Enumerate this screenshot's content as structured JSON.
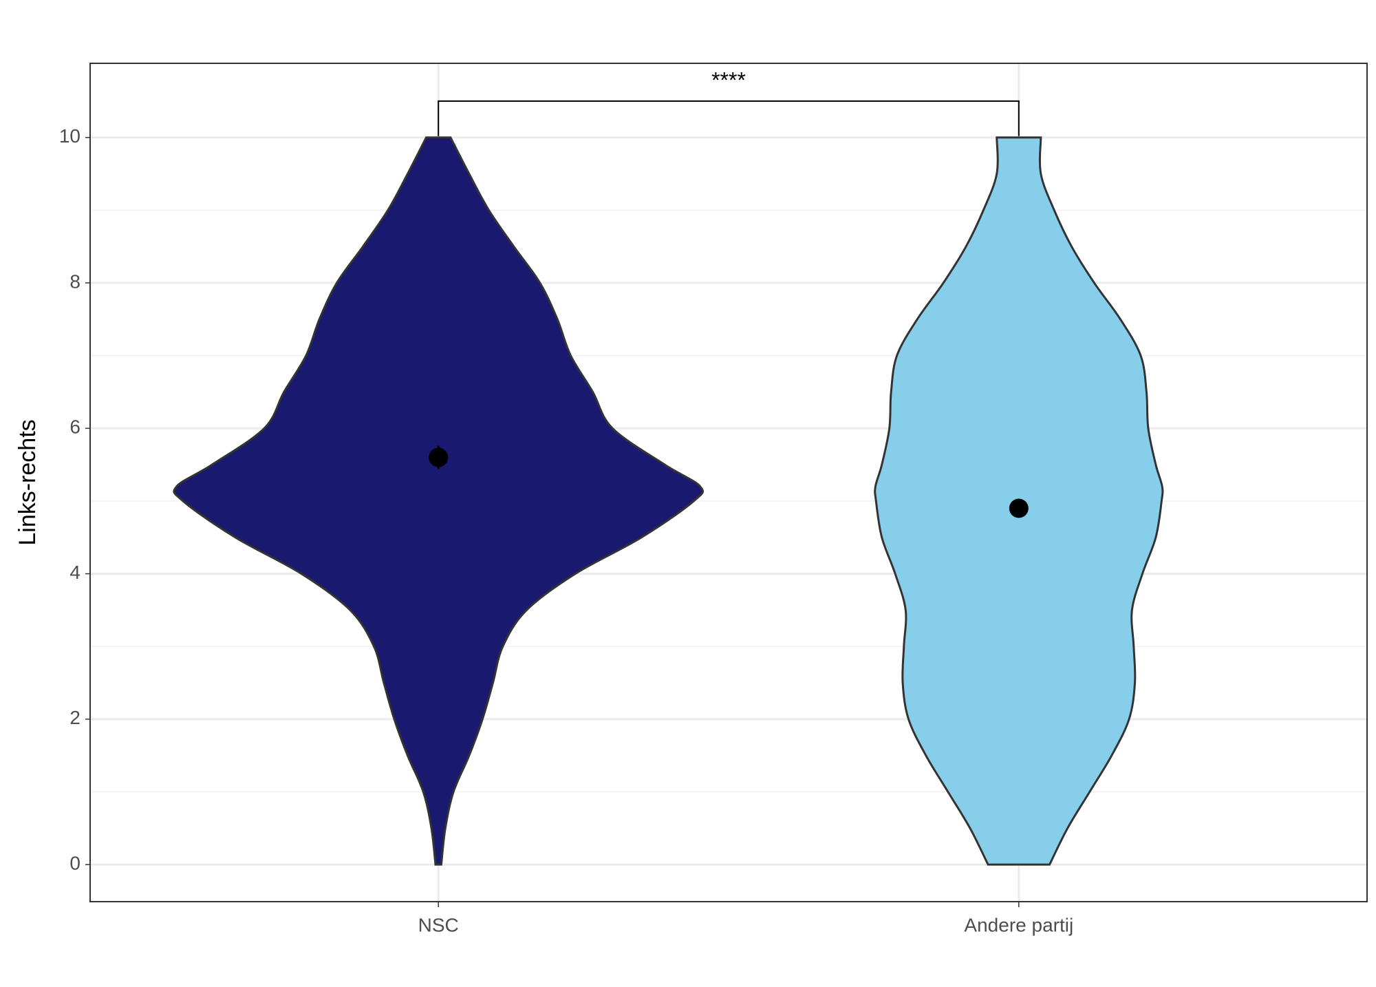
{
  "chart_data": {
    "type": "violin",
    "ylabel": "Links-rechts",
    "categories": [
      "NSC",
      "Andere partij"
    ],
    "ylim": [
      -0.51,
      11.02
    ],
    "yticks": [
      0,
      2,
      4,
      6,
      8,
      10
    ],
    "yminor": [
      1,
      3,
      5,
      7,
      9
    ],
    "grid": true,
    "density_y": [
      0,
      0.5,
      1,
      1.5,
      2,
      2.5,
      3,
      3.5,
      4,
      4.5,
      5,
      5.2,
      5.5,
      6,
      6.5,
      7,
      7.5,
      8,
      8.5,
      9,
      9.5,
      10
    ],
    "series": [
      {
        "name": "NSC",
        "color": "#191970",
        "half_widths": [
          0.005,
          0.012,
          0.026,
          0.053,
          0.076,
          0.094,
          0.111,
          0.152,
          0.236,
          0.35,
          0.44,
          0.451,
          0.39,
          0.3,
          0.266,
          0.228,
          0.205,
          0.175,
          0.13,
          0.087,
          0.053,
          0.021
        ],
        "mean": 5.6,
        "error": 0.16
      },
      {
        "name": "Andere partij",
        "color": "#87ceeb",
        "half_widths": [
          0.053,
          0.084,
          0.122,
          0.16,
          0.19,
          0.2,
          0.198,
          0.195,
          0.213,
          0.236,
          0.246,
          0.247,
          0.236,
          0.223,
          0.22,
          0.21,
          0.175,
          0.13,
          0.091,
          0.061,
          0.038,
          0.038
        ],
        "mean": 4.9,
        "error": 0.03
      }
    ],
    "annotation": {
      "text": "****",
      "bracket_y": 10.5,
      "bracket_foot": 10.0
    }
  }
}
